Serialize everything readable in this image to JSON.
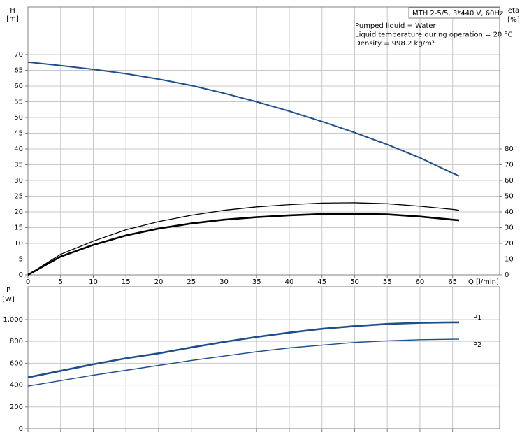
{
  "chart_data": [
    {
      "type": "line",
      "title": "MTH 2-5/5, 3*440 V, 60Hz",
      "annotations": [
        "Pumped liquid = Water",
        "Liquid temperature during operation = 20 °C",
        "Density = 998.2 kg/m³"
      ],
      "x_label": "Q [l/min]",
      "y_label": "H",
      "y_unit": "[m]",
      "y2_label": "eta",
      "y2_unit": "[%]",
      "grid": true,
      "xlim": [
        0,
        72.2
      ],
      "xticks": [
        0,
        5,
        10,
        15,
        20,
        25,
        30,
        35,
        40,
        45,
        50,
        55,
        60,
        65
      ],
      "ylim": [
        0,
        85.1
      ],
      "yticks": [
        0,
        5,
        10,
        15,
        20,
        25,
        30,
        35,
        40,
        45,
        50,
        55,
        60,
        65,
        70
      ],
      "y2lim": [
        0,
        170.2
      ],
      "y2ticks": [
        0,
        10,
        20,
        30,
        40,
        50,
        60,
        70,
        80
      ],
      "x": [
        0,
        5,
        10,
        15,
        20,
        25,
        30,
        35,
        40,
        45,
        50,
        55,
        60,
        65,
        66
      ],
      "series": [
        {
          "color": "#1f4e8c",
          "values": [
            67.6,
            66.5,
            65.3,
            63.9,
            62.2,
            60.2,
            57.7,
            55.0,
            52.0,
            48.7,
            45.2,
            41.4,
            37.2,
            32.3,
            31.4
          ]
        },
        {
          "color": "#000000",
          "axis": "y2",
          "values": [
            0,
            13,
            21.4,
            28.6,
            33.8,
            37.8,
            41,
            43.2,
            44.6,
            45.6,
            45.8,
            45.2,
            43.6,
            41.6,
            41
          ]
        },
        {
          "color": "#000000",
          "axis": "y2",
          "values": [
            0,
            11.6,
            19,
            25,
            29.4,
            32.6,
            35,
            36.6,
            37.8,
            38.6,
            38.8,
            38.4,
            37,
            35,
            34.6
          ]
        }
      ]
    },
    {
      "type": "line",
      "y_label": "P",
      "y_unit": "[W]",
      "grid": true,
      "xlim": [
        0,
        72.2
      ],
      "ylim": [
        0,
        1301
      ],
      "yticks": [
        0,
        200,
        400,
        600,
        800,
        {
          "value": 1000,
          "label": "1,000"
        }
      ],
      "x": [
        0,
        5,
        10,
        15,
        20,
        25,
        30,
        35,
        40,
        45,
        50,
        55,
        60,
        65,
        66
      ],
      "series": [
        {
          "name": "P1",
          "color": "#1f4e8c",
          "values": [
            470,
            530,
            590,
            645,
            690,
            745,
            795,
            840,
            880,
            915,
            940,
            960,
            970,
            975,
            975
          ]
        },
        {
          "name": "P2",
          "color": "#1f4e8c",
          "values": [
            390,
            440,
            490,
            535,
            580,
            625,
            665,
            705,
            740,
            765,
            790,
            805,
            815,
            820,
            820
          ]
        }
      ]
    }
  ]
}
